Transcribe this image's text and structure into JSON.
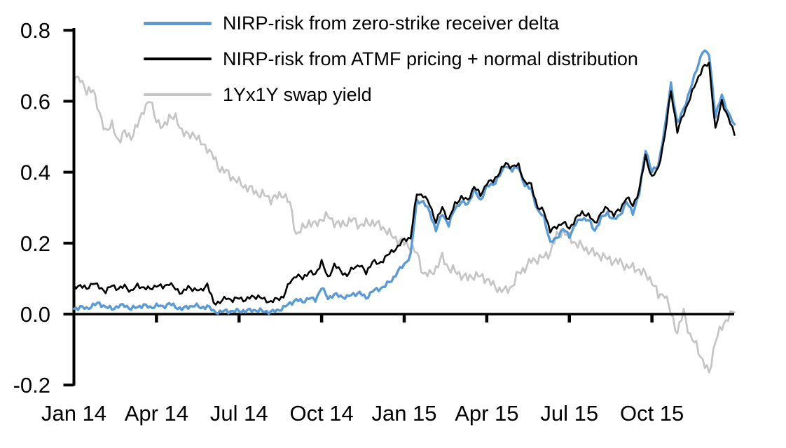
{
  "background_color": "#ffffff",
  "axis_color": "#000000",
  "chart_data": {
    "type": "line",
    "title": "",
    "xlabel": "",
    "ylabel": "",
    "legend_position": "top-left-inside",
    "grid": false,
    "x_axis": {
      "unit": "weekly samples, Jan 2014 - Dec 2015",
      "ticks": [
        {
          "label": "Jan 14",
          "week": 0
        },
        {
          "label": "Apr 14",
          "week": 13
        },
        {
          "label": "Jul 14",
          "week": 26
        },
        {
          "label": "Oct 14",
          "week": 39
        },
        {
          "label": "Jan 15",
          "week": 52
        },
        {
          "label": "Apr 15",
          "week": 65
        },
        {
          "label": "Jul 15",
          "week": 78
        },
        {
          "label": "Oct 15",
          "week": 91
        }
      ],
      "range_weeks": [
        0,
        104
      ]
    },
    "y_axis": {
      "tick_labels": [
        "0.8",
        "0.6",
        "0.4",
        "0.2",
        "0.0",
        "-0.2"
      ],
      "tick_values": [
        0.8,
        0.6,
        0.4,
        0.2,
        0.0,
        -0.2
      ],
      "range": [
        -0.2,
        0.8
      ]
    },
    "series": [
      {
        "id": "nirp-risk-zero-strike-receiver-delta",
        "name": "NIRP-risk from zero-strike receiver delta",
        "color": "#5B9BD5",
        "values": [
          0.015,
          0.02,
          0.015,
          0.025,
          0.03,
          0.02,
          0.015,
          0.022,
          0.025,
          0.015,
          0.02,
          0.025,
          0.018,
          0.025,
          0.02,
          0.03,
          0.02,
          0.015,
          0.02,
          0.025,
          0.018,
          0.022,
          0.008,
          0.005,
          0.01,
          0.007,
          0.01,
          0.008,
          0.012,
          0.01,
          0.008,
          0.006,
          0.01,
          0.018,
          0.03,
          0.04,
          0.035,
          0.045,
          0.04,
          0.075,
          0.045,
          0.055,
          0.05,
          0.048,
          0.056,
          0.06,
          0.045,
          0.065,
          0.07,
          0.08,
          0.095,
          0.12,
          0.14,
          0.165,
          0.32,
          0.315,
          0.29,
          0.235,
          0.285,
          0.25,
          0.3,
          0.315,
          0.31,
          0.35,
          0.32,
          0.36,
          0.365,
          0.39,
          0.42,
          0.405,
          0.415,
          0.36,
          0.355,
          0.29,
          0.275,
          0.2,
          0.215,
          0.24,
          0.22,
          0.255,
          0.27,
          0.265,
          0.235,
          0.27,
          0.285,
          0.265,
          0.28,
          0.315,
          0.285,
          0.34,
          0.465,
          0.4,
          0.42,
          0.52,
          0.65,
          0.535,
          0.58,
          0.63,
          0.69,
          0.74,
          0.735,
          0.555,
          0.62,
          0.565,
          0.535
        ]
      },
      {
        "id": "nirp-risk-atmf-normal-distribution",
        "name": "NIRP-risk from ATMF pricing + normal distribution",
        "color": "#000000",
        "values": [
          0.075,
          0.082,
          0.07,
          0.09,
          0.075,
          0.065,
          0.08,
          0.072,
          0.078,
          0.065,
          0.08,
          0.075,
          0.07,
          0.082,
          0.075,
          0.088,
          0.07,
          0.06,
          0.075,
          0.07,
          0.065,
          0.085,
          0.03,
          0.035,
          0.045,
          0.04,
          0.045,
          0.04,
          0.048,
          0.05,
          0.04,
          0.035,
          0.042,
          0.05,
          0.09,
          0.11,
          0.1,
          0.12,
          0.11,
          0.15,
          0.1,
          0.14,
          0.12,
          0.11,
          0.13,
          0.14,
          0.115,
          0.15,
          0.14,
          0.16,
          0.175,
          0.19,
          0.21,
          0.215,
          0.34,
          0.335,
          0.31,
          0.26,
          0.3,
          0.265,
          0.31,
          0.33,
          0.32,
          0.36,
          0.335,
          0.37,
          0.375,
          0.4,
          0.425,
          0.415,
          0.42,
          0.37,
          0.365,
          0.3,
          0.29,
          0.235,
          0.245,
          0.26,
          0.24,
          0.27,
          0.285,
          0.28,
          0.255,
          0.285,
          0.3,
          0.28,
          0.295,
          0.33,
          0.305,
          0.35,
          0.445,
          0.385,
          0.41,
          0.5,
          0.63,
          0.515,
          0.565,
          0.61,
          0.655,
          0.695,
          0.705,
          0.52,
          0.6,
          0.555,
          0.505
        ]
      },
      {
        "id": "1yx1y-swap-yield",
        "name": "1Yx1Y swap yield",
        "color": "#C5C5C5",
        "values": [
          0.66,
          0.67,
          0.62,
          0.64,
          0.56,
          0.52,
          0.53,
          0.49,
          0.51,
          0.5,
          0.53,
          0.58,
          0.6,
          0.55,
          0.52,
          0.56,
          0.55,
          0.52,
          0.5,
          0.51,
          0.48,
          0.47,
          0.44,
          0.41,
          0.4,
          0.385,
          0.37,
          0.36,
          0.35,
          0.34,
          0.335,
          0.325,
          0.33,
          0.34,
          0.31,
          0.225,
          0.24,
          0.26,
          0.25,
          0.27,
          0.275,
          0.26,
          0.25,
          0.26,
          0.265,
          0.25,
          0.255,
          0.26,
          0.25,
          0.24,
          0.22,
          0.21,
          0.2,
          0.19,
          0.17,
          0.115,
          0.11,
          0.13,
          0.16,
          0.13,
          0.12,
          0.11,
          0.1,
          0.11,
          0.105,
          0.1,
          0.08,
          0.07,
          0.065,
          0.08,
          0.115,
          0.13,
          0.15,
          0.155,
          0.16,
          0.175,
          0.22,
          0.235,
          0.215,
          0.2,
          0.19,
          0.18,
          0.17,
          0.165,
          0.155,
          0.15,
          0.145,
          0.135,
          0.13,
          0.125,
          0.11,
          0.095,
          0.05,
          0.06,
          0.0,
          -0.05,
          0.005,
          -0.06,
          -0.09,
          -0.13,
          -0.17,
          -0.07,
          -0.04,
          -0.005,
          0.005
        ]
      }
    ]
  }
}
